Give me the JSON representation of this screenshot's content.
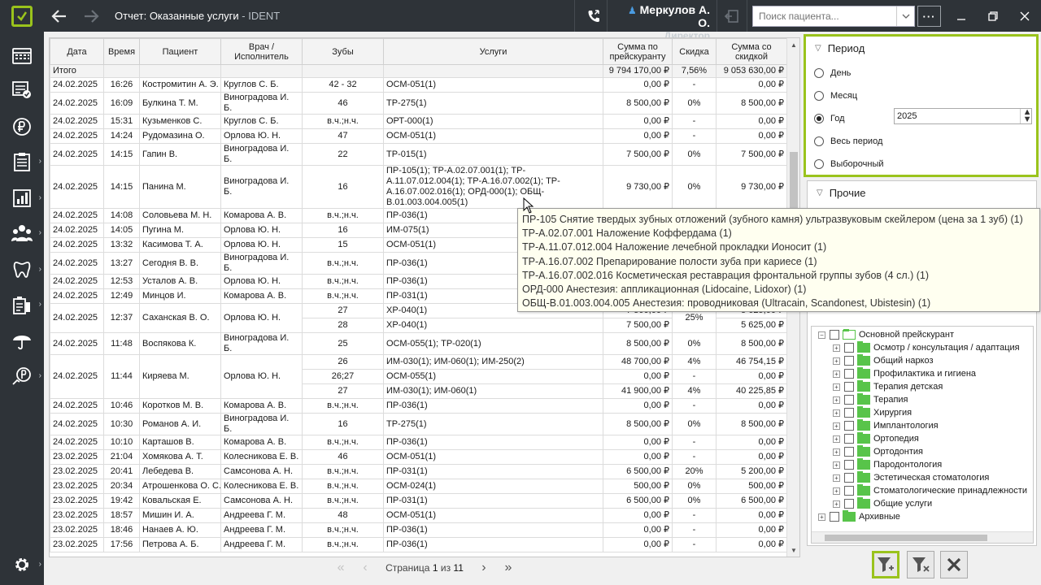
{
  "app": {
    "title": "Отчет: Оказанные услуги",
    "app_name": "IDENT",
    "user_name": "Меркулов А. О.",
    "user_role": "Директор",
    "search_placeholder": "Поиск пациента...",
    "more_label": "···",
    "accent": "#9ac31c",
    "dark": "#2e3338"
  },
  "sidebar_icons": [
    "calendar-grid-icon",
    "list-check-icon",
    "ruble-icon",
    "clipboard-icon",
    "report-chart-icon",
    "people-icon",
    "tooth-icon",
    "inventory-icon",
    "umbrella-icon",
    "payment-icon",
    "gear-icon"
  ],
  "table": {
    "headers": [
      "Дата",
      "Время",
      "Пациент",
      "Врач / Исполнитель",
      "Зубы",
      "Услуги",
      "Сумма по прейскуранту",
      "Скидка",
      "Сумма со скидкой"
    ],
    "total": {
      "label": "Итого",
      "price_sum": "9 794 170,00 ₽",
      "discount": "7,56%",
      "net_sum": "9 053 630,00 ₽"
    },
    "rows": [
      {
        "date": "24.02.2025",
        "time": "16:26",
        "patient": "Костромитин А. Э.",
        "doctor": "Круглов С. Б.",
        "teeth": "42 - 32",
        "services": "ОСМ-051(1)",
        "price": "0,00 ₽",
        "discount": "-",
        "net": "0,00 ₽"
      },
      {
        "date": "24.02.2025",
        "time": "16:09",
        "patient": "Булкина Т. М.",
        "doctor": "Виноградова И. Б.",
        "teeth": "46",
        "services": "ТР-275(1)",
        "price": "8 500,00 ₽",
        "discount": "0%",
        "net": "8 500,00 ₽"
      },
      {
        "date": "24.02.2025",
        "time": "15:31",
        "patient": "Кузьменков С.",
        "doctor": "Круглов С. Б.",
        "teeth": "в.ч.;н.ч.",
        "services": "ОРТ-000(1)",
        "price": "0,00 ₽",
        "discount": "-",
        "net": "0,00 ₽"
      },
      {
        "date": "24.02.2025",
        "time": "14:24",
        "patient": "Рудомазина О.",
        "doctor": "Орлова Ю. Н.",
        "teeth": "47",
        "services": "ОСМ-051(1)",
        "price": "0,00 ₽",
        "discount": "-",
        "net": "0,00 ₽"
      },
      {
        "date": "24.02.2025",
        "time": "14:15",
        "patient": "Гапин В.",
        "doctor": "Виноградова И. Б.",
        "teeth": "22",
        "services": "ТР-015(1)",
        "price": "7 500,00 ₽",
        "discount": "0%",
        "net": "7 500,00 ₽"
      },
      {
        "date": "24.02.2025",
        "time": "14:15",
        "patient": "Панина М.",
        "doctor": "Виноградова И. Б.",
        "teeth": "16",
        "services": "ПР-105(1); ТР-А.02.07.001(1); ТР-А.11.07.012.004(1); ТР-А.16.07.002(1); ТР-А.16.07.002.016(1); ОРД-000(1); ОБЩ-В.01.003.004.005(1)",
        "price": "9 730,00 ₽",
        "discount": "0%",
        "net": "9 730,00 ₽"
      },
      {
        "date": "24.02.2025",
        "time": "14:08",
        "patient": "Соловьева М. Н.",
        "doctor": "Комарова А. В.",
        "teeth": "в.ч.;н.ч.",
        "services": "ПР-036(1)",
        "price": "",
        "discount": "",
        "net": ""
      },
      {
        "date": "24.02.2025",
        "time": "14:05",
        "patient": "Пугина М.",
        "doctor": "Орлова Ю. Н.",
        "teeth": "16",
        "services": "ИМ-075(1)",
        "price": "",
        "discount": "",
        "net": ""
      },
      {
        "date": "24.02.2025",
        "time": "13:32",
        "patient": "Касимова Т. А.",
        "doctor": "Орлова Ю. Н.",
        "teeth": "15",
        "services": "ОСМ-051(1)",
        "price": "",
        "discount": "",
        "net": ""
      },
      {
        "date": "24.02.2025",
        "time": "13:27",
        "patient": "Сегодня В. В.",
        "doctor": "Виноградова И. Б.",
        "teeth": "в.ч.;н.ч.",
        "services": "ПР-036(1)",
        "price": "",
        "discount": "",
        "net": ""
      },
      {
        "date": "24.02.2025",
        "time": "12:53",
        "patient": "Усталов А. В.",
        "doctor": "Орлова Ю. Н.",
        "teeth": "в.ч.;н.ч.",
        "services": "ПР-036(1)",
        "price": "",
        "discount": "",
        "net": ""
      },
      {
        "date": "24.02.2025",
        "time": "12:49",
        "patient": "Минцов И.",
        "doctor": "Комарова А. В.",
        "teeth": "в.ч.;н.ч.",
        "services": "ПР-031(1)",
        "price": "",
        "discount": "",
        "net": ""
      },
      {
        "date": "24.02.2025",
        "time": "12:37",
        "patient": "Саханская В. О.",
        "doctor": "Орлова Ю. Н.",
        "teeth": "27",
        "services": "ХР-040(1)",
        "price": "7 500,00 ₽",
        "discount": "25%",
        "net": "5 625,00 ₽",
        "teeth2": "28",
        "services2": "ХР-040(1)",
        "price2": "7 500,00 ₽",
        "net2": "5 625,00 ₽"
      },
      {
        "date": "24.02.2025",
        "time": "11:48",
        "patient": "Воспякова К.",
        "doctor": "Виноградова И. Б.",
        "teeth": "25",
        "services": "ОСМ-055(1); ТР-020(1)",
        "price": "8 500,00 ₽",
        "discount": "0%",
        "net": "8 500,00 ₽"
      },
      {
        "date": "24.02.2025",
        "time": "11:44",
        "patient": "Киряева М.",
        "doctor": "Орлова Ю. Н.",
        "teeth": "26",
        "services": "ИМ-030(1); ИМ-060(1); ИМ-250(2)",
        "price": "48 700,00 ₽",
        "discount": "4%",
        "net": "46 754,15 ₽",
        "teeth2": "26;27",
        "services2": "ОСМ-055(1)",
        "price2": "0,00 ₽",
        "discount2": "-",
        "net2": "0,00 ₽",
        "teeth3": "27",
        "services3": "ИМ-030(1); ИМ-060(1)",
        "price3": "41 900,00 ₽",
        "discount3": "4%",
        "net3": "40 225,85 ₽"
      },
      {
        "date": "24.02.2025",
        "time": "10:46",
        "patient": "Коротков М. В.",
        "doctor": "Комарова А. В.",
        "teeth": "в.ч.;н.ч.",
        "services": "ПР-036(1)",
        "price": "0,00 ₽",
        "discount": "-",
        "net": "0,00 ₽"
      },
      {
        "date": "24.02.2025",
        "time": "10:30",
        "patient": "Романов А. И.",
        "doctor": "Виноградова И. Б.",
        "teeth": "16",
        "services": "ТР-275(1)",
        "price": "8 500,00 ₽",
        "discount": "0%",
        "net": "8 500,00 ₽"
      },
      {
        "date": "24.02.2025",
        "time": "10:10",
        "patient": "Карташов В.",
        "doctor": "Комарова А. В.",
        "teeth": "в.ч.;н.ч.",
        "services": "ПР-036(1)",
        "price": "0,00 ₽",
        "discount": "-",
        "net": "0,00 ₽"
      },
      {
        "date": "23.02.2025",
        "time": "21:04",
        "patient": "Хомякова А. Т.",
        "doctor": "Колесникова Е. В.",
        "teeth": "46",
        "services": "ОСМ-051(1)",
        "price": "0,00 ₽",
        "discount": "-",
        "net": "0,00 ₽"
      },
      {
        "date": "23.02.2025",
        "time": "20:41",
        "patient": "Лебедева В.",
        "doctor": "Самсонова А. Н.",
        "teeth": "в.ч.;н.ч.",
        "services": "ПР-031(1)",
        "price": "6 500,00 ₽",
        "discount": "20%",
        "net": "5 200,00 ₽"
      },
      {
        "date": "23.02.2025",
        "time": "20:34",
        "patient": "Атрошенкова О. С.",
        "doctor": "Колесникова Е. В.",
        "teeth": "в.ч.;н.ч.",
        "services": "ОСМ-024(1)",
        "price": "500,00 ₽",
        "discount": "0%",
        "net": "500,00 ₽"
      },
      {
        "date": "23.02.2025",
        "time": "19:42",
        "patient": "Ковальская Е.",
        "doctor": "Самсонова А. Н.",
        "teeth": "в.ч.;н.ч.",
        "services": "ПР-031(1)",
        "price": "6 500,00 ₽",
        "discount": "0%",
        "net": "6 500,00 ₽"
      },
      {
        "date": "23.02.2025",
        "time": "18:57",
        "patient": "Мишин И. А.",
        "doctor": "Андреева Г. М.",
        "teeth": "48",
        "services": "ОСМ-051(1)",
        "price": "0,00 ₽",
        "discount": "-",
        "net": "0,00 ₽"
      },
      {
        "date": "23.02.2025",
        "time": "18:46",
        "patient": "Нанаев А. Ю.",
        "doctor": "Андреева Г. М.",
        "teeth": "в.ч.;н.ч.",
        "services": "ПР-036(1)",
        "price": "0,00 ₽",
        "discount": "-",
        "net": "0,00 ₽"
      },
      {
        "date": "23.02.2025",
        "time": "17:56",
        "patient": "Петрова А. Б.",
        "doctor": "Андреева Г. М.",
        "teeth": "в.ч.;н.ч.",
        "services": "ПР-036(1)",
        "price": "0,00 ₽",
        "discount": "-",
        "net": "0,00 ₽"
      }
    ]
  },
  "pager": {
    "label_page": "Страница",
    "current": "1",
    "label_of": "из",
    "total": "11"
  },
  "period": {
    "title": "Период",
    "options": [
      "День",
      "Месяц",
      "Год",
      "Весь период",
      "Выборочный"
    ],
    "selected": "Год",
    "year": "2025"
  },
  "other": {
    "title": "Прочие"
  },
  "tree": {
    "root": "Основной прейскурант",
    "children": [
      "Осмотр / консультация / адаптация",
      "Общий наркоз",
      "Профилактика и гигиена",
      "Терапия детская",
      "Терапия",
      "Хирургия",
      "Имплантология",
      "Ортопедия",
      "Ортодонтия",
      "Пародонтология",
      "Эстетическая стоматология",
      "Стоматологические принадлежности",
      "Общие услуги"
    ],
    "archive": "Архивные"
  },
  "tooltip": [
    "ПР-105 Снятие твердых зубных отложений (зубного камня) ультразвуковым скейлером (цена за 1 зуб) (1)",
    "ТР-А.02.07.001 Наложение Коффердама (1)",
    "ТР-А.11.07.012.004 Наложение лечебной прокладки Ионосит (1)",
    "ТР-А.16.07.002 Препарирование полости зуба при кариесе (1)",
    "ТР-А.16.07.002.016 Косметическая реставрация фронтальной группы зубов (4 сл.) (1)",
    "ОРД-000 Анестезия: аппликационная (Lidocaine, Lidoxor) (1)",
    "ОБЩ-В.01.003.004.005 Анестезия: проводниковая (Ultracain, Scandonest, Ubistesin) (1)"
  ]
}
